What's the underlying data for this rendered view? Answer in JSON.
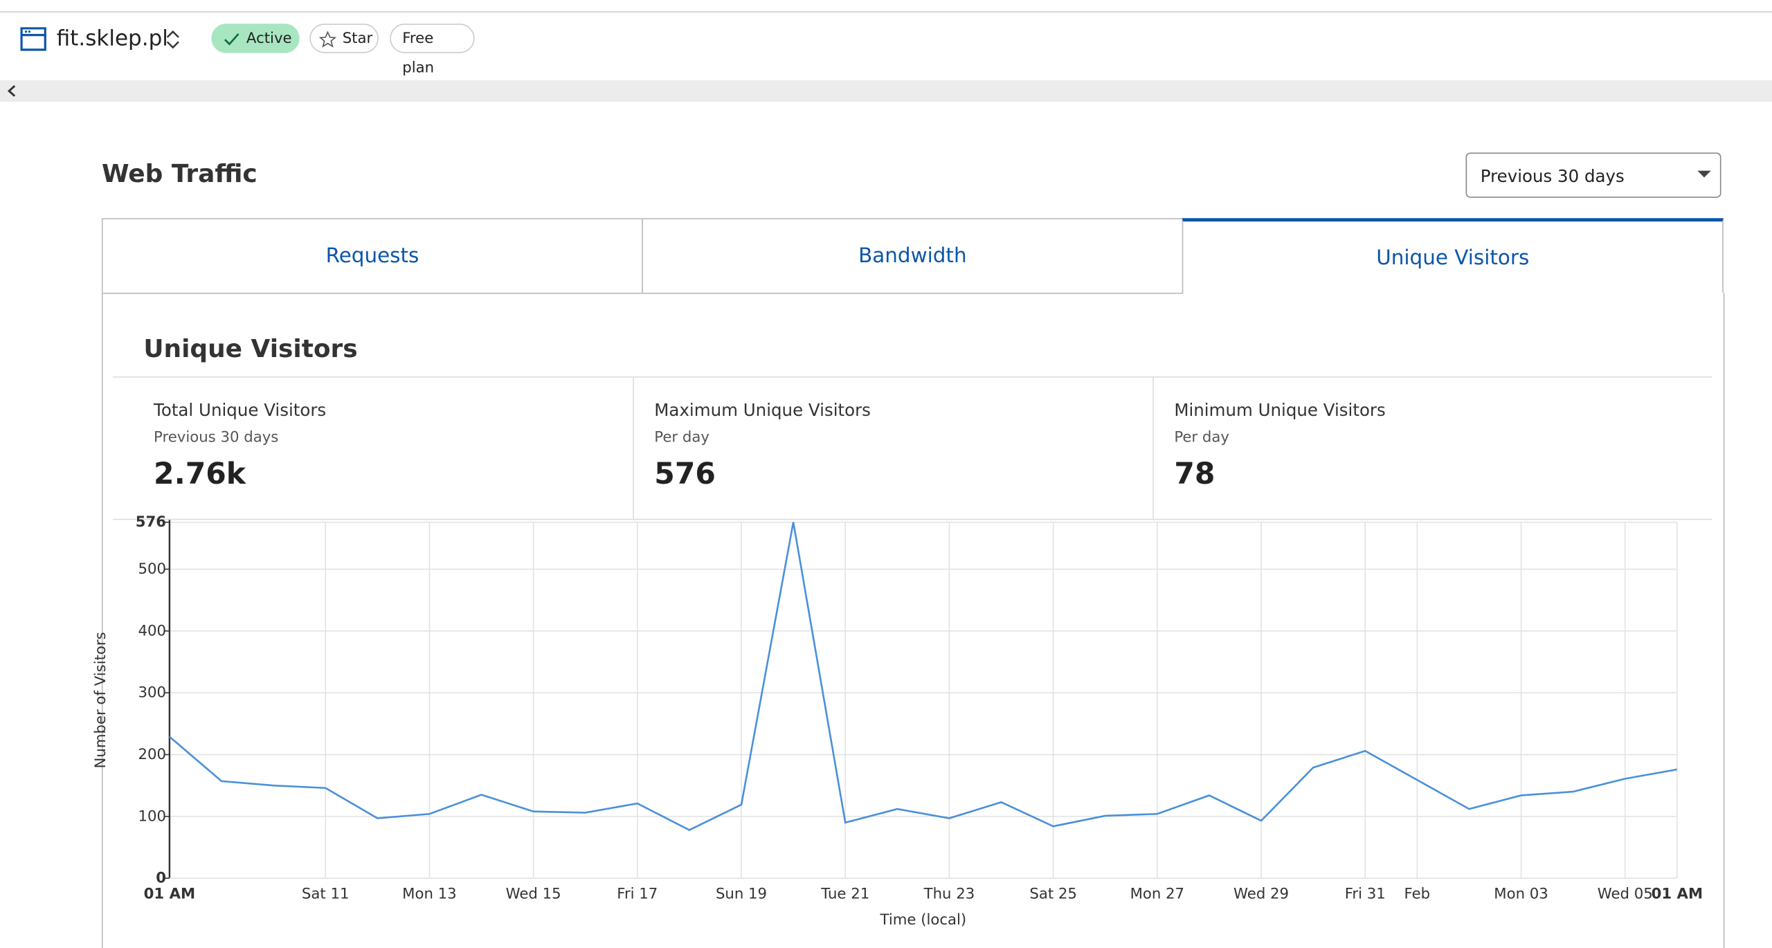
{
  "header": {
    "site": "fit.sklep.pl",
    "badges": [
      "Active",
      "Star",
      "Free plan"
    ]
  },
  "section_title": "Web Traffic",
  "range_select": "Previous 30 days",
  "tabs": [
    "Requests",
    "Bandwidth",
    "Unique Visitors"
  ],
  "active_tab": 2,
  "panel_title": "Unique Visitors",
  "stats": [
    {
      "label": "Total Unique Visitors",
      "sub": "Previous 30 days",
      "value": "2.76k"
    },
    {
      "label": "Maximum Unique Visitors",
      "sub": "Per day",
      "value": "576"
    },
    {
      "label": "Minimum Unique Visitors",
      "sub": "Per day",
      "value": "78"
    }
  ],
  "chart_data": {
    "type": "line",
    "categories": [
      "01 AM",
      null,
      null,
      "Sat 11",
      null,
      "Mon 13",
      null,
      "Wed 15",
      null,
      "Fri 17",
      null,
      "Sun 19",
      null,
      "Tue 21",
      null,
      "Thu 23",
      null,
      "Sat 25",
      null,
      "Mon 27",
      null,
      "Wed 29",
      null,
      "Fri 31",
      "Feb",
      null,
      "Mon 03",
      null,
      "Wed 05",
      "01 AM"
    ],
    "values": [
      229,
      157,
      150,
      146,
      97,
      104,
      135,
      108,
      106,
      121,
      78,
      119,
      576,
      90,
      112,
      97,
      123,
      84,
      101,
      104,
      134,
      93,
      179,
      206,
      159,
      112,
      134,
      140,
      161,
      176
    ],
    "color": "#4a90d9",
    "ylim": [
      0,
      576
    ],
    "yticks": [
      0,
      100,
      200,
      300,
      400,
      500,
      576
    ],
    "x_label": "Time (local)",
    "y_label": "Number of Visitors",
    "grid": true
  }
}
